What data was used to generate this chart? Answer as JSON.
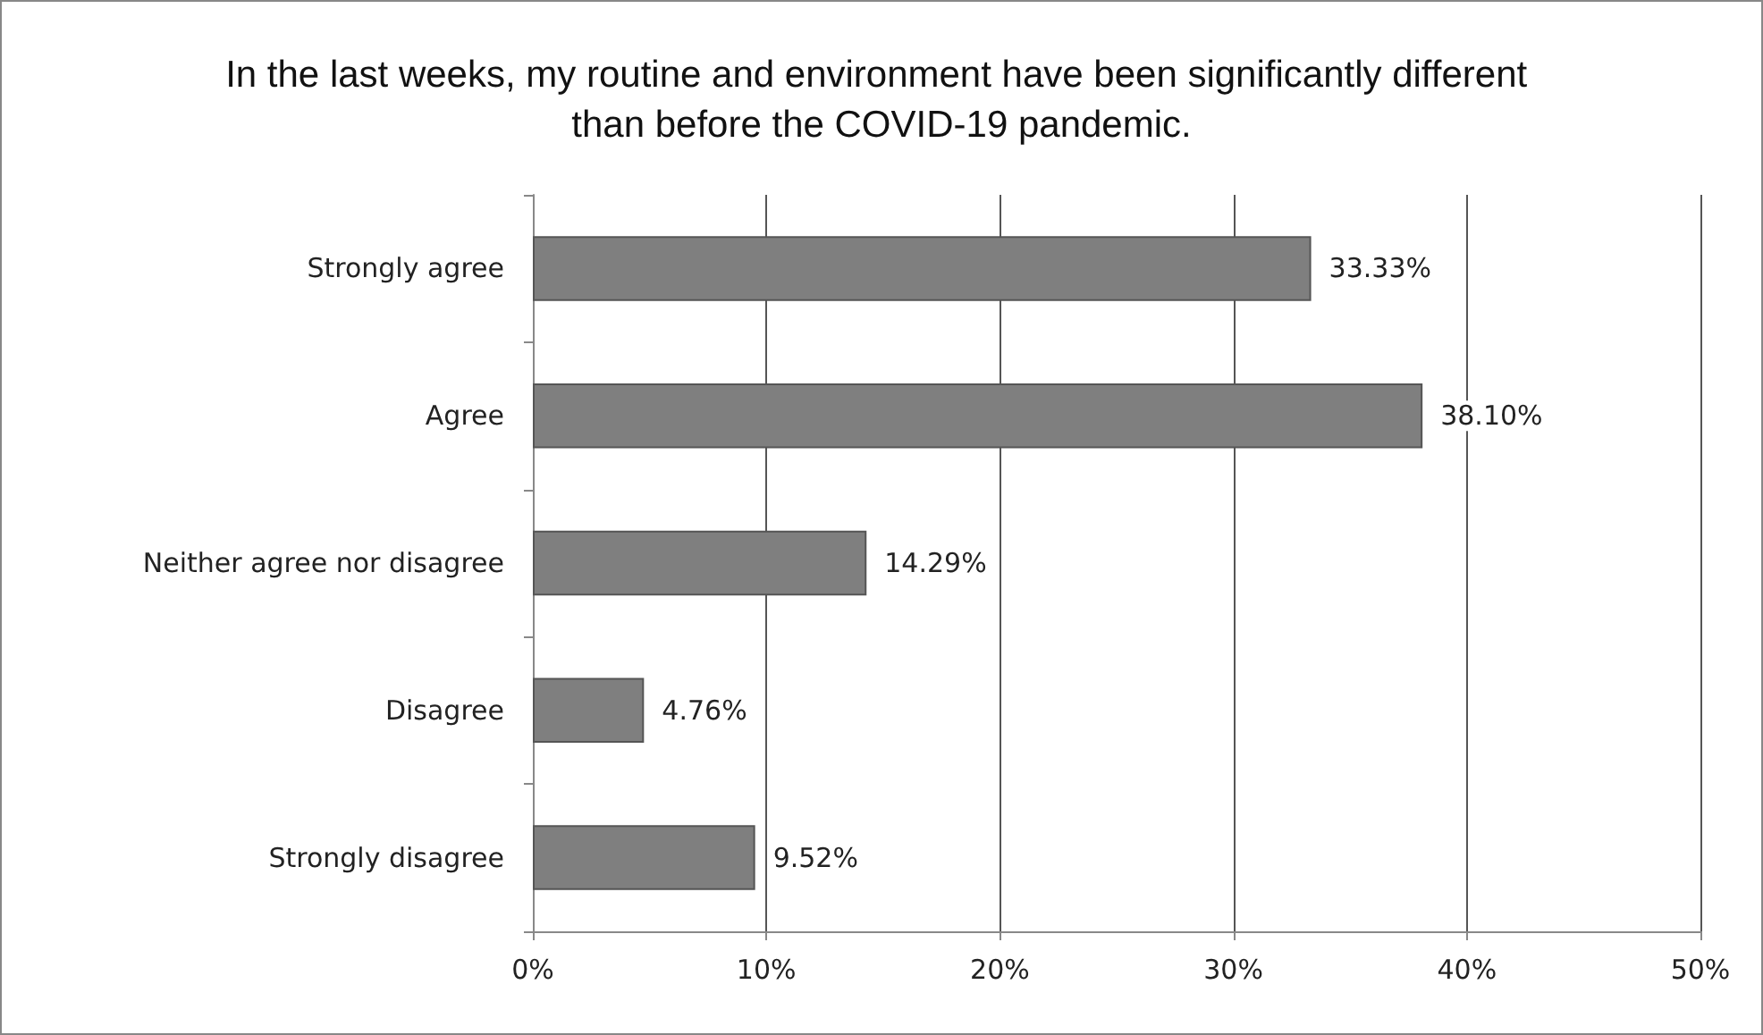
{
  "chart_data": {
    "type": "bar",
    "orientation": "horizontal",
    "title": "In the last weeks, my routine and environment have been significantly different than before the COVID-19 pandemic.",
    "categories": [
      "Strongly agree",
      "Agree",
      "Neither agree nor disagree",
      "Disagree",
      "Strongly disagree"
    ],
    "values": [
      33.33,
      38.1,
      14.29,
      4.76,
      9.52
    ],
    "value_labels": [
      "33.33%",
      "38.10%",
      "14.29%",
      "4.76%",
      "9.52%"
    ],
    "color": "#7f7f7f",
    "xlim": [
      0,
      50
    ],
    "xticks": [
      {
        "value": 0,
        "label": "0%"
      },
      {
        "value": 10,
        "label": "10%"
      },
      {
        "value": 20,
        "label": "20%"
      },
      {
        "value": 30,
        "label": "30%"
      },
      {
        "value": 40,
        "label": "40%"
      },
      {
        "value": 50,
        "label": "50%"
      }
    ],
    "grid": "x"
  }
}
